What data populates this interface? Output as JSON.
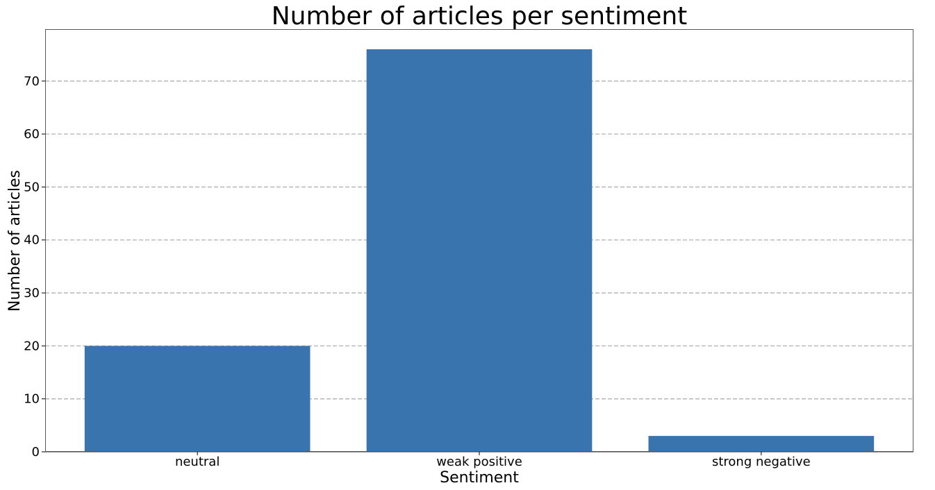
{
  "chart_data": {
    "type": "bar",
    "title": "Number of articles per sentiment",
    "xlabel": "Sentiment",
    "ylabel": "Number of articles",
    "categories": [
      "neutral",
      "weak positive",
      "strong negative"
    ],
    "values": [
      20,
      76,
      3
    ],
    "ylim": [
      0,
      79.8
    ],
    "yticks": [
      0,
      10,
      20,
      30,
      40,
      50,
      60,
      70
    ],
    "grid": "y-dashed",
    "bar_color": "#3a74ae",
    "grid_color": "#b0b0b0"
  }
}
